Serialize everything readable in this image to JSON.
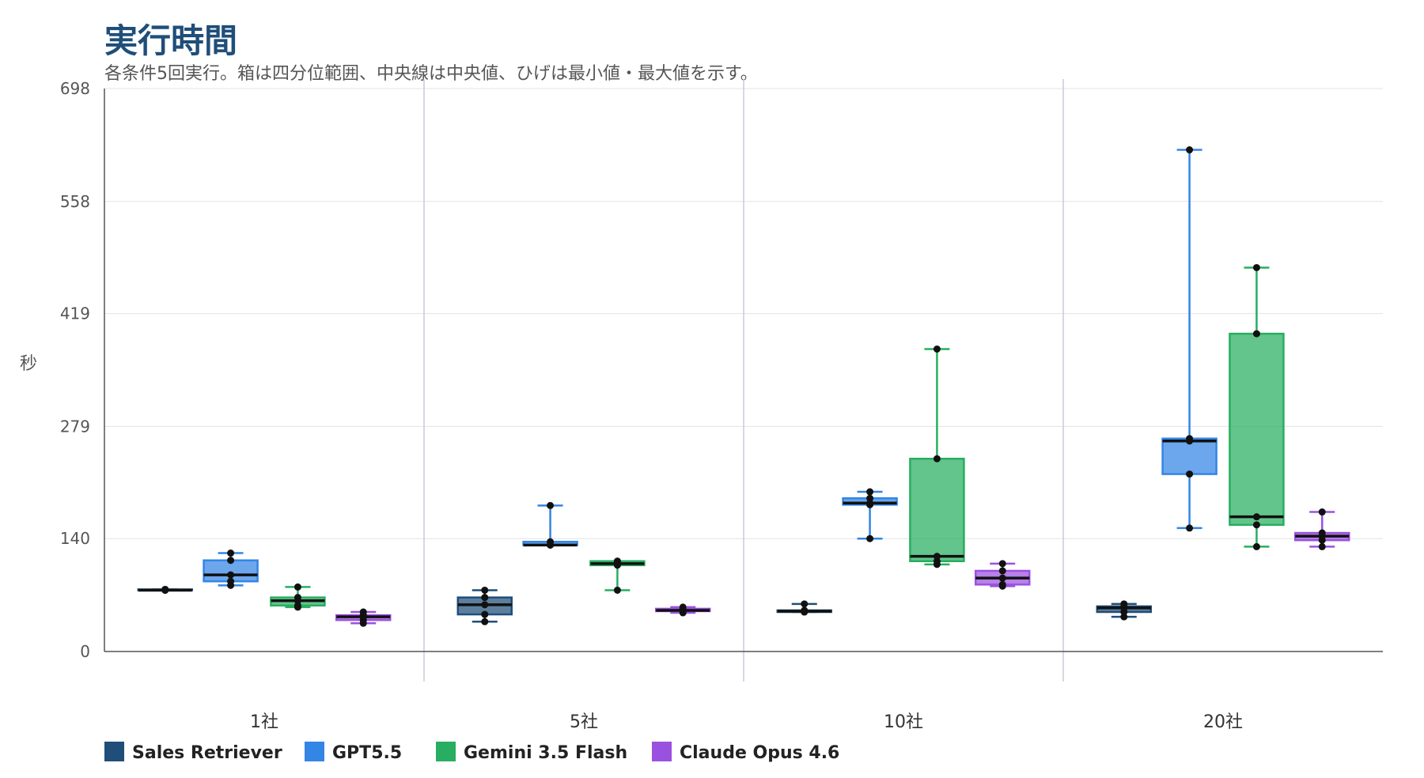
{
  "chart_data": {
    "type": "box",
    "title": "実行時間",
    "subtitle": "各条件5回実行。箱は四分位範囲、中央線は中央値、ひげは最小値・最大値を示す。",
    "ylabel": "秒",
    "xlabel": "",
    "ylim": [
      0,
      698
    ],
    "yticks": [
      0,
      140,
      279,
      419,
      558,
      698
    ],
    "ytick_labels": [
      "0",
      "140",
      "279",
      "419",
      "558",
      "698"
    ],
    "grid": true,
    "legend_position": "bottom-left",
    "categories": [
      "1社",
      "5社",
      "10社",
      "20社"
    ],
    "series": [
      {
        "name": "Sales Retriever",
        "color": "#1f4e79",
        "boxes": [
          {
            "min": 76,
            "q1": 76,
            "median": 76,
            "q3": 77,
            "max": 77,
            "points": [
              76,
              76,
              76,
              77,
              77
            ]
          },
          {
            "min": 37,
            "q1": 46,
            "median": 58,
            "q3": 67,
            "max": 76,
            "points": [
              37,
              46,
              58,
              67,
              76
            ]
          },
          {
            "min": 49,
            "q1": 49,
            "median": 50,
            "q3": 51,
            "max": 59,
            "points": [
              49,
              49,
              50,
              51,
              59
            ]
          },
          {
            "min": 43,
            "q1": 49,
            "median": 54,
            "q3": 56,
            "max": 59,
            "points": [
              43,
              49,
              54,
              56,
              59
            ]
          }
        ]
      },
      {
        "name": "GPT5.5",
        "color": "#3385e6",
        "boxes": [
          {
            "min": 82,
            "q1": 87,
            "median": 95,
            "q3": 113,
            "max": 122,
            "points": [
              82,
              87,
              95,
              113,
              122
            ]
          },
          {
            "min": 132,
            "q1": 132,
            "median": 132,
            "q3": 136,
            "max": 181,
            "points": [
              132,
              132,
              132,
              136,
              181
            ]
          },
          {
            "min": 140,
            "q1": 182,
            "median": 184,
            "q3": 190,
            "max": 198,
            "points": [
              140,
              182,
              184,
              190,
              198
            ]
          },
          {
            "min": 153,
            "q1": 220,
            "median": 261,
            "q3": 264,
            "max": 622,
            "points": [
              153,
              220,
              261,
              264,
              622
            ]
          }
        ]
      },
      {
        "name": "Gemini 3.5 Flash",
        "color": "#27ae60",
        "boxes": [
          {
            "min": 55,
            "q1": 57,
            "median": 63,
            "q3": 67,
            "max": 80,
            "points": [
              55,
              57,
              63,
              67,
              80
            ]
          },
          {
            "min": 76,
            "q1": 107,
            "median": 109,
            "q3": 112,
            "max": 112,
            "points": [
              76,
              107,
              109,
              112,
              112
            ]
          },
          {
            "min": 108,
            "q1": 112,
            "median": 118,
            "q3": 239,
            "max": 375,
            "points": [
              108,
              112,
              118,
              239,
              375
            ]
          },
          {
            "min": 130,
            "q1": 157,
            "median": 167,
            "q3": 394,
            "max": 476,
            "points": [
              130,
              157,
              167,
              394,
              476
            ]
          }
        ]
      },
      {
        "name": "Claude Opus 4.6",
        "color": "#9b51e0",
        "boxes": [
          {
            "min": 35,
            "q1": 39,
            "median": 43,
            "q3": 45,
            "max": 49,
            "points": [
              35,
              39,
              43,
              45,
              49
            ]
          },
          {
            "min": 48,
            "q1": 50,
            "median": 51,
            "q3": 53,
            "max": 55,
            "points": [
              48,
              50,
              51,
              53,
              55
            ]
          },
          {
            "min": 81,
            "q1": 83,
            "median": 91,
            "q3": 100,
            "max": 109,
            "points": [
              81,
              83,
              91,
              100,
              109
            ]
          },
          {
            "min": 130,
            "q1": 138,
            "median": 143,
            "q3": 147,
            "max": 173,
            "points": [
              130,
              138,
              143,
              147,
              173
            ]
          }
        ]
      }
    ]
  }
}
